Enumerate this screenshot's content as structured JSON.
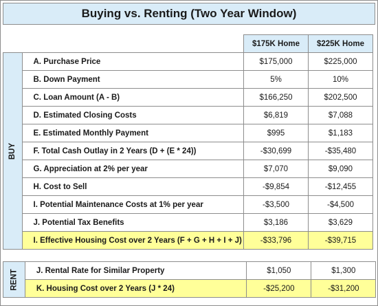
{
  "title": "Buying vs. Renting (Two Year Window)",
  "columns": [
    "$175K Home",
    "$225K Home"
  ],
  "buy": {
    "side_label": "BUY",
    "rows": [
      {
        "label": "A.  Purchase Price",
        "v1": "$175,000",
        "v2": "$225,000"
      },
      {
        "label": "B.  Down Payment",
        "v1": "5%",
        "v2": "10%"
      },
      {
        "label": "C.  Loan Amount (A - B)",
        "v1": "$166,250",
        "v2": "$202,500"
      },
      {
        "label": "D.  Estimated Closing Costs",
        "v1": "$6,819",
        "v2": "$7,088"
      },
      {
        "label": "E.  Estimated Monthly Payment",
        "v1": "$995",
        "v2": "$1,183"
      },
      {
        "label": "F.  Total Cash Outlay in 2 Years (D + (E * 24))",
        "v1": "-$30,699",
        "v2": "-$35,480"
      },
      {
        "label": "G.  Appreciation at 2% per year",
        "v1": "$7,070",
        "v2": "$9,090"
      },
      {
        "label": "H.  Cost to Sell",
        "v1": "-$9,854",
        "v2": "-$12,455"
      },
      {
        "label": "I.  Potential Maintenance Costs at 1% per year",
        "v1": "-$3,500",
        "v2": "-$4,500"
      },
      {
        "label": "J.  Potential Tax Benefits",
        "v1": "$3,186",
        "v2": "$3,629"
      },
      {
        "label": "I.  Effective Housing Cost over 2 Years (F + G + H + I + J)",
        "v1": "-$33,796",
        "v2": "-$39,715"
      }
    ]
  },
  "rent": {
    "side_label": "RENT",
    "rows": [
      {
        "label": "J.  Rental Rate for Similar Property",
        "v1": "$1,050",
        "v2": "$1,300"
      },
      {
        "label": "K.  Housing Cost over 2 Years  (J * 24)",
        "v1": "-$25,200",
        "v2": "-$31,200"
      }
    ]
  },
  "colors": {
    "header_bg": "#d9ecf8",
    "highlight_bg": "#ffff99",
    "border": "#8c8c8c"
  }
}
